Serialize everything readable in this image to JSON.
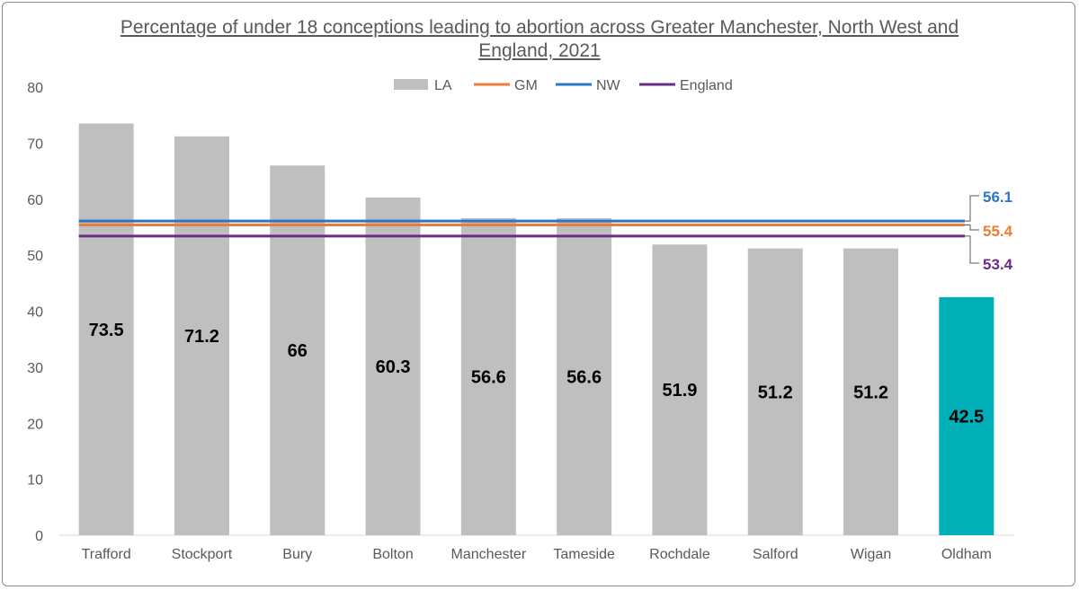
{
  "chart_data": {
    "type": "bar",
    "title": "Percentage of under 18 conceptions leading to abortion across Greater Manchester, North West and England, 2021",
    "categories": [
      "Trafford",
      "Stockport",
      "Bury",
      "Bolton",
      "Manchester",
      "Tameside",
      "Rochdale",
      "Salford",
      "Wigan",
      "Oldham"
    ],
    "series": [
      {
        "name": "LA",
        "values": [
          73.5,
          71.2,
          66,
          60.3,
          56.6,
          56.6,
          51.9,
          51.2,
          51.2,
          42.5
        ]
      }
    ],
    "bar_labels": [
      "73.5",
      "71.2",
      "66",
      "60.3",
      "56.6",
      "56.6",
      "51.9",
      "51.2",
      "51.2",
      "42.5"
    ],
    "highlight_category": "Oldham",
    "reference_lines": [
      {
        "name": "GM",
        "value": 55.4,
        "label": "55.4",
        "color": "#ed7d31"
      },
      {
        "name": "NW",
        "value": 56.1,
        "label": "56.1",
        "color": "#2e75c6"
      },
      {
        "name": "England",
        "value": 53.4,
        "label": "53.4",
        "color": "#6a2d86"
      }
    ],
    "yticks": [
      "0",
      "10",
      "20",
      "30",
      "40",
      "50",
      "60",
      "70",
      "80"
    ],
    "ylim": [
      0,
      80
    ],
    "grid": false,
    "legend_position": "top",
    "colors": {
      "bar": "#bfbfbf",
      "highlight": "#00b0b8"
    }
  }
}
